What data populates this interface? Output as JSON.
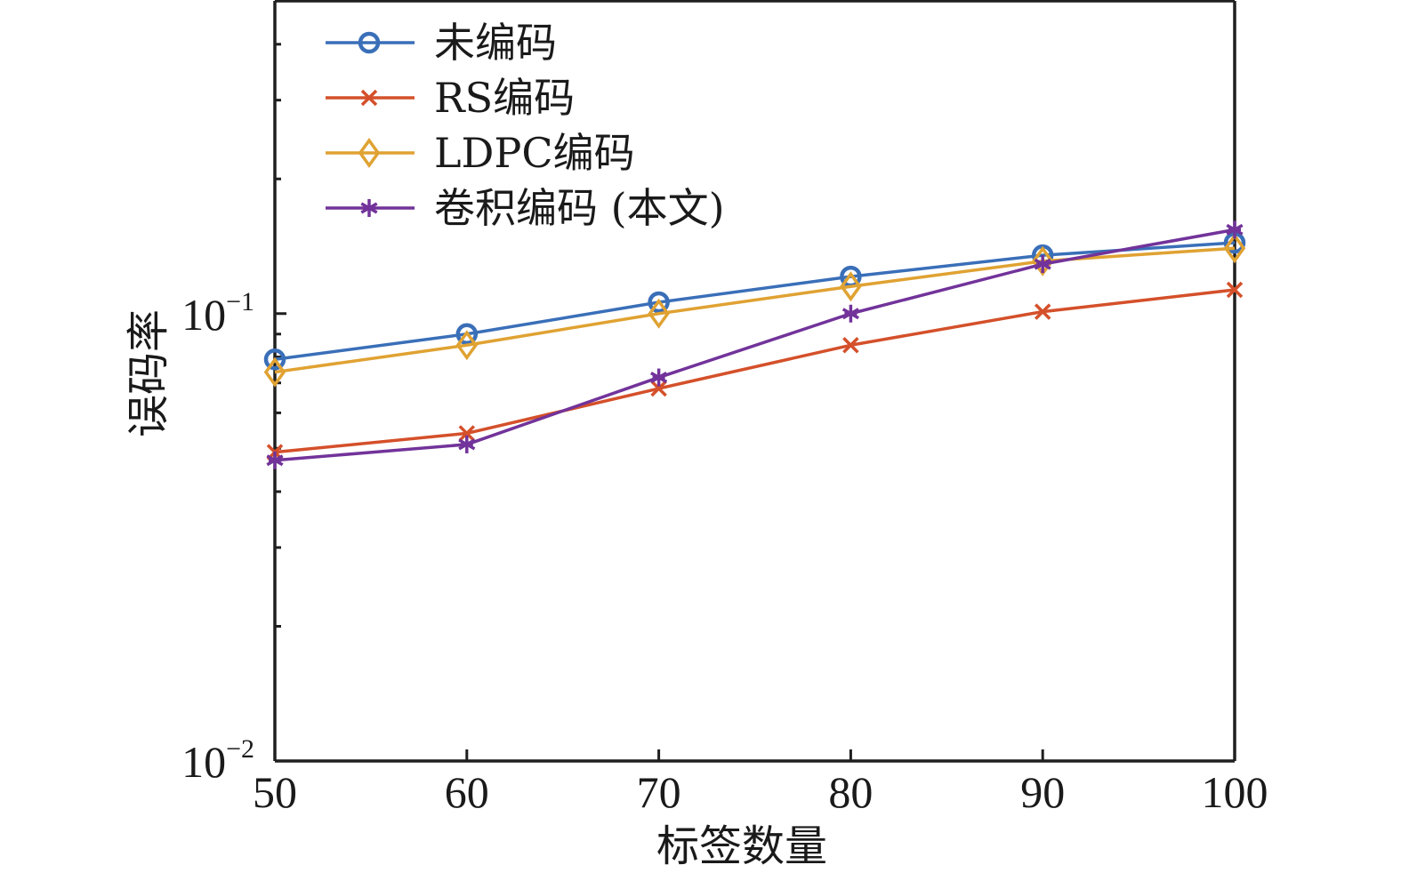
{
  "chart_data": {
    "type": "line",
    "title": "",
    "xlabel": "标签数量",
    "ylabel": "误码率",
    "x": [
      50,
      60,
      70,
      80,
      90,
      100
    ],
    "xlim": [
      50,
      100
    ],
    "ylim": [
      0.01,
      0.5
    ],
    "yscale": "log",
    "xticks": [
      50,
      60,
      70,
      80,
      90,
      100
    ],
    "xtick_labels": [
      "50",
      "60",
      "70",
      "80",
      "90",
      "100"
    ],
    "yticks_major": [
      {
        "value": 0.01,
        "base": "10",
        "exp": "−2"
      },
      {
        "value": 0.1,
        "base": "10",
        "exp": "−1"
      }
    ],
    "yticks_minor": [
      0.02,
      0.03,
      0.04,
      0.05,
      0.06,
      0.07,
      0.08,
      0.09,
      0.2,
      0.3,
      0.4
    ],
    "grid": false,
    "legend_position": "top-left",
    "series": [
      {
        "name": "未编码",
        "marker": "circle",
        "color": "#3a6fb8",
        "values": [
          0.079,
          0.09,
          0.106,
          0.121,
          0.135,
          0.144
        ]
      },
      {
        "name": "RS编码",
        "marker": "x",
        "color": "#d4502a",
        "values": [
          0.049,
          0.054,
          0.068,
          0.085,
          0.101,
          0.113
        ]
      },
      {
        "name": "LDPC编码",
        "marker": "diamond",
        "color": "#e0a232",
        "values": [
          0.074,
          0.085,
          0.1,
          0.115,
          0.131,
          0.14
        ]
      },
      {
        "name": "卷积编码 (本文)",
        "marker": "asterisk",
        "color": "#72339a",
        "values": [
          0.047,
          0.051,
          0.072,
          0.1,
          0.129,
          0.154
        ]
      }
    ]
  }
}
